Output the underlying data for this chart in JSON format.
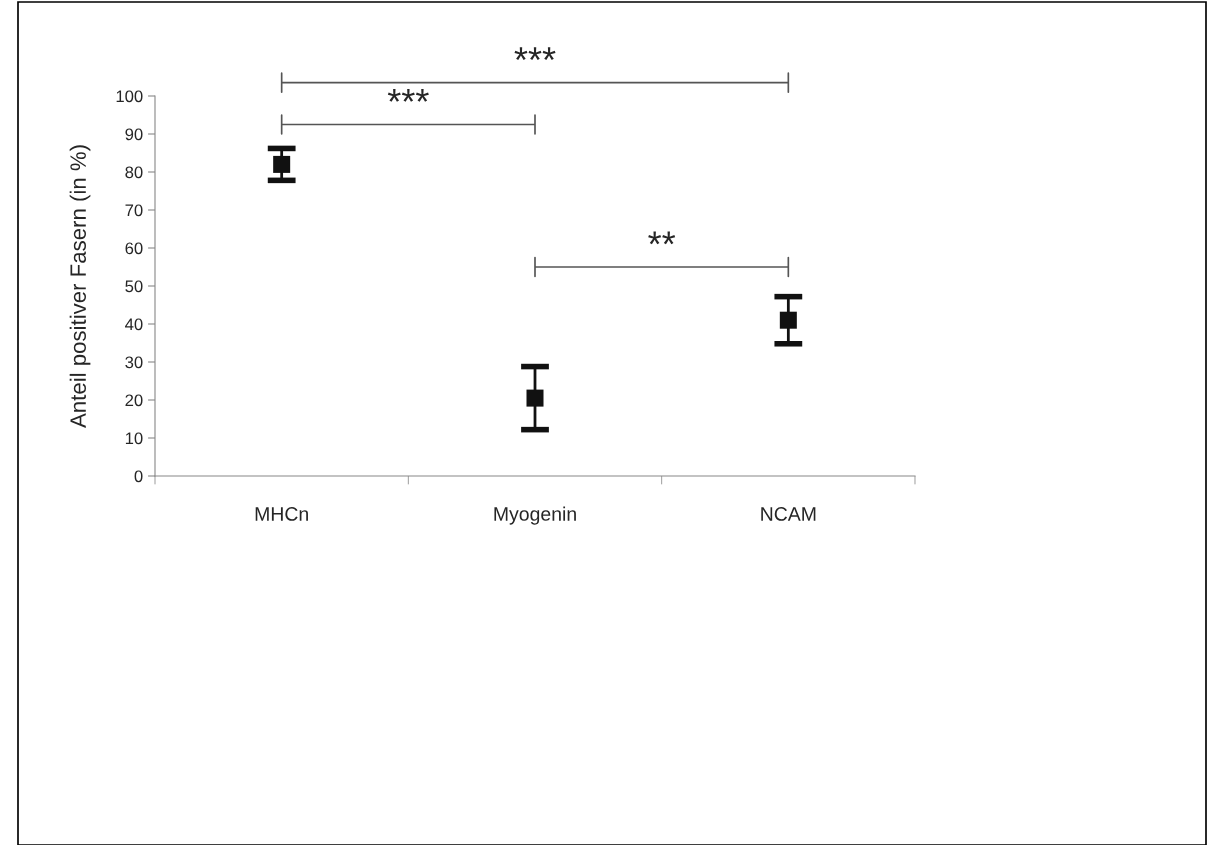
{
  "chart_data": {
    "type": "scatter",
    "ylabel": "Anteil positiver Fasern (in %)",
    "categories": [
      "MHCn",
      "Myogenin",
      "NCAM"
    ],
    "values": [
      82,
      20.5,
      41
    ],
    "errors": [
      4.2,
      8.3,
      6.2
    ],
    "color": "#111111",
    "marker": "square",
    "ylim": [
      0,
      100
    ],
    "yticks": [
      0,
      10,
      20,
      30,
      40,
      50,
      60,
      70,
      80,
      90,
      100
    ],
    "grid": false,
    "annotations": [
      "***",
      "***",
      "**"
    ]
  }
}
